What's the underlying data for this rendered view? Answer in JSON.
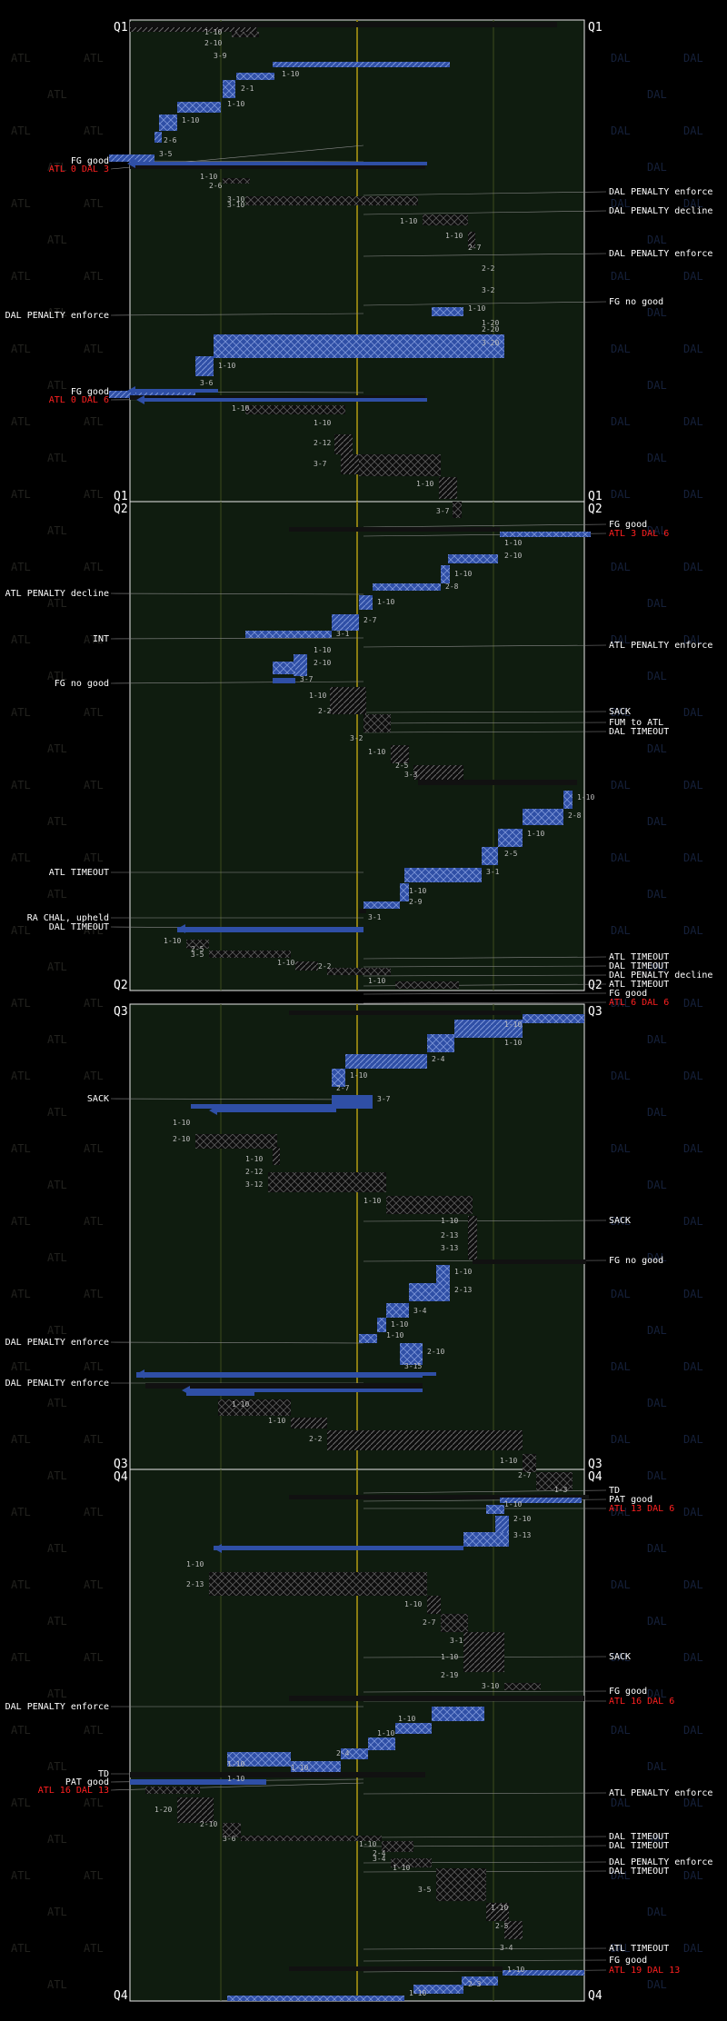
{
  "colors": {
    "background": "#000000",
    "field": "#0f1c0f",
    "atl_drive": "#2f4fa6",
    "dal_drive": "#111111",
    "goal_line": "#8a7c12",
    "yard_line": "#3d4d1c",
    "atl_watermark": "#22221e",
    "dal_watermark": "#15203a"
  },
  "chart_data": {
    "type": "drive-chart",
    "teams": {
      "left": "ATL",
      "right": "DAL"
    },
    "quarters": [
      {
        "label_top": "Q1",
        "label_bottom": "Q1",
        "left_annotations": [
          "FG good",
          "ATL 0 DAL 3",
          "DAL PENALTY enforce",
          "FG good",
          "ATL 0 DAL 6"
        ],
        "right_annotations": [
          "DAL PENALTY enforce",
          "DAL PENALTY decline",
          "DAL PENALTY enforce",
          "FG no good"
        ],
        "down_distance": [
          "1-10",
          "2-10",
          "3-9",
          "1-10",
          "2-1",
          "1-10",
          "1-10",
          "2-6",
          "3-5",
          "1-10",
          "2-6",
          "3-10",
          "3-10",
          "1-10",
          "1-10",
          "2-7",
          "2-2",
          "3-2",
          "1-10",
          "1-20",
          "2-20",
          "3-20",
          "1-10",
          "3-6",
          "1-10",
          "1-10",
          "2-12",
          "3-7",
          "1-10",
          "3-7"
        ]
      },
      {
        "label_top": "Q2",
        "label_bottom": "Q2",
        "left_annotations": [
          "ATL PENALTY decline",
          "INT",
          "FG no good",
          "ATL TIMEOUT",
          "RA CHAL, upheld",
          "DAL TIMEOUT"
        ],
        "right_annotations": [
          "FG good",
          "ATL 3 DAL 6",
          "ATL PENALTY enforce",
          "SACK",
          "FUM to ATL",
          "DAL TIMEOUT",
          "ATL TIMEOUT",
          "DAL TIMEOUT",
          "DAL PENALTY decline",
          "ATL TIMEOUT",
          "FG good",
          "ATL 6 DAL 6"
        ],
        "down_distance": [
          "1-10",
          "2-10",
          "1-10",
          "2-8",
          "1-10",
          "2-7",
          "3-1",
          "1-10",
          "2-10",
          "3-7",
          "1-10",
          "2-2",
          "3-2",
          "1-10",
          "2-5",
          "3-3",
          "1-10",
          "2-8",
          "1-10",
          "2-5",
          "3-1",
          "1-10",
          "2-9",
          "3-1",
          "1-10",
          "2-5",
          "3-5",
          "1-10",
          "2-2",
          "1-10"
        ]
      },
      {
        "label_top": "Q3",
        "label_bottom": "Q3",
        "left_annotations": [
          "SACK",
          "DAL PENALTY enforce",
          "DAL PENALTY enforce"
        ],
        "right_annotations": [
          "SACK",
          "FG no good"
        ],
        "down_distance": [
          "1-10",
          "1-10",
          "2-4",
          "1-10",
          "2-7",
          "3-7",
          "1-10",
          "2-10",
          "1-10",
          "2-12",
          "3-12",
          "1-10",
          "1-10",
          "2-13",
          "3-13",
          "1-10",
          "2-13",
          "3-4",
          "1-10",
          "1-10",
          "2-10",
          "3-15",
          "1-10",
          "1-10",
          "2-2",
          "1-10",
          "2-7",
          "1-3"
        ]
      },
      {
        "label_top": "Q4",
        "label_bottom": "Q4",
        "left_annotations": [
          "DAL PENALTY enforce",
          "TD",
          "PAT good",
          "ATL 16 DAL 13"
        ],
        "right_annotations": [
          "TD",
          "PAT good",
          "ATL 13 DAL 6",
          "SACK",
          "FG good",
          "ATL 16 DAL 6",
          "ATL PENALTY enforce",
          "DAL TIMEOUT",
          "DAL TIMEOUT",
          "DAL PENALTY enforce",
          "DAL TIMEOUT",
          "ATL TIMEOUT",
          "FG good",
          "ATL 19 DAL 13"
        ],
        "down_distance": [
          "1-10",
          "2-10",
          "3-13",
          "1-10",
          "2-13",
          "1-10",
          "2-7",
          "3-1",
          "1-10",
          "2-19",
          "3-10",
          "1-10",
          "1-10",
          "2-4",
          "1-10",
          "1-10",
          "1-10",
          "1-20",
          "2-10",
          "3-6",
          "1-10",
          "2-4",
          "3-4",
          "1-10",
          "3-5",
          "1-10",
          "2-5",
          "3-4",
          "1-10",
          "2-3",
          "1-10"
        ]
      }
    ]
  }
}
